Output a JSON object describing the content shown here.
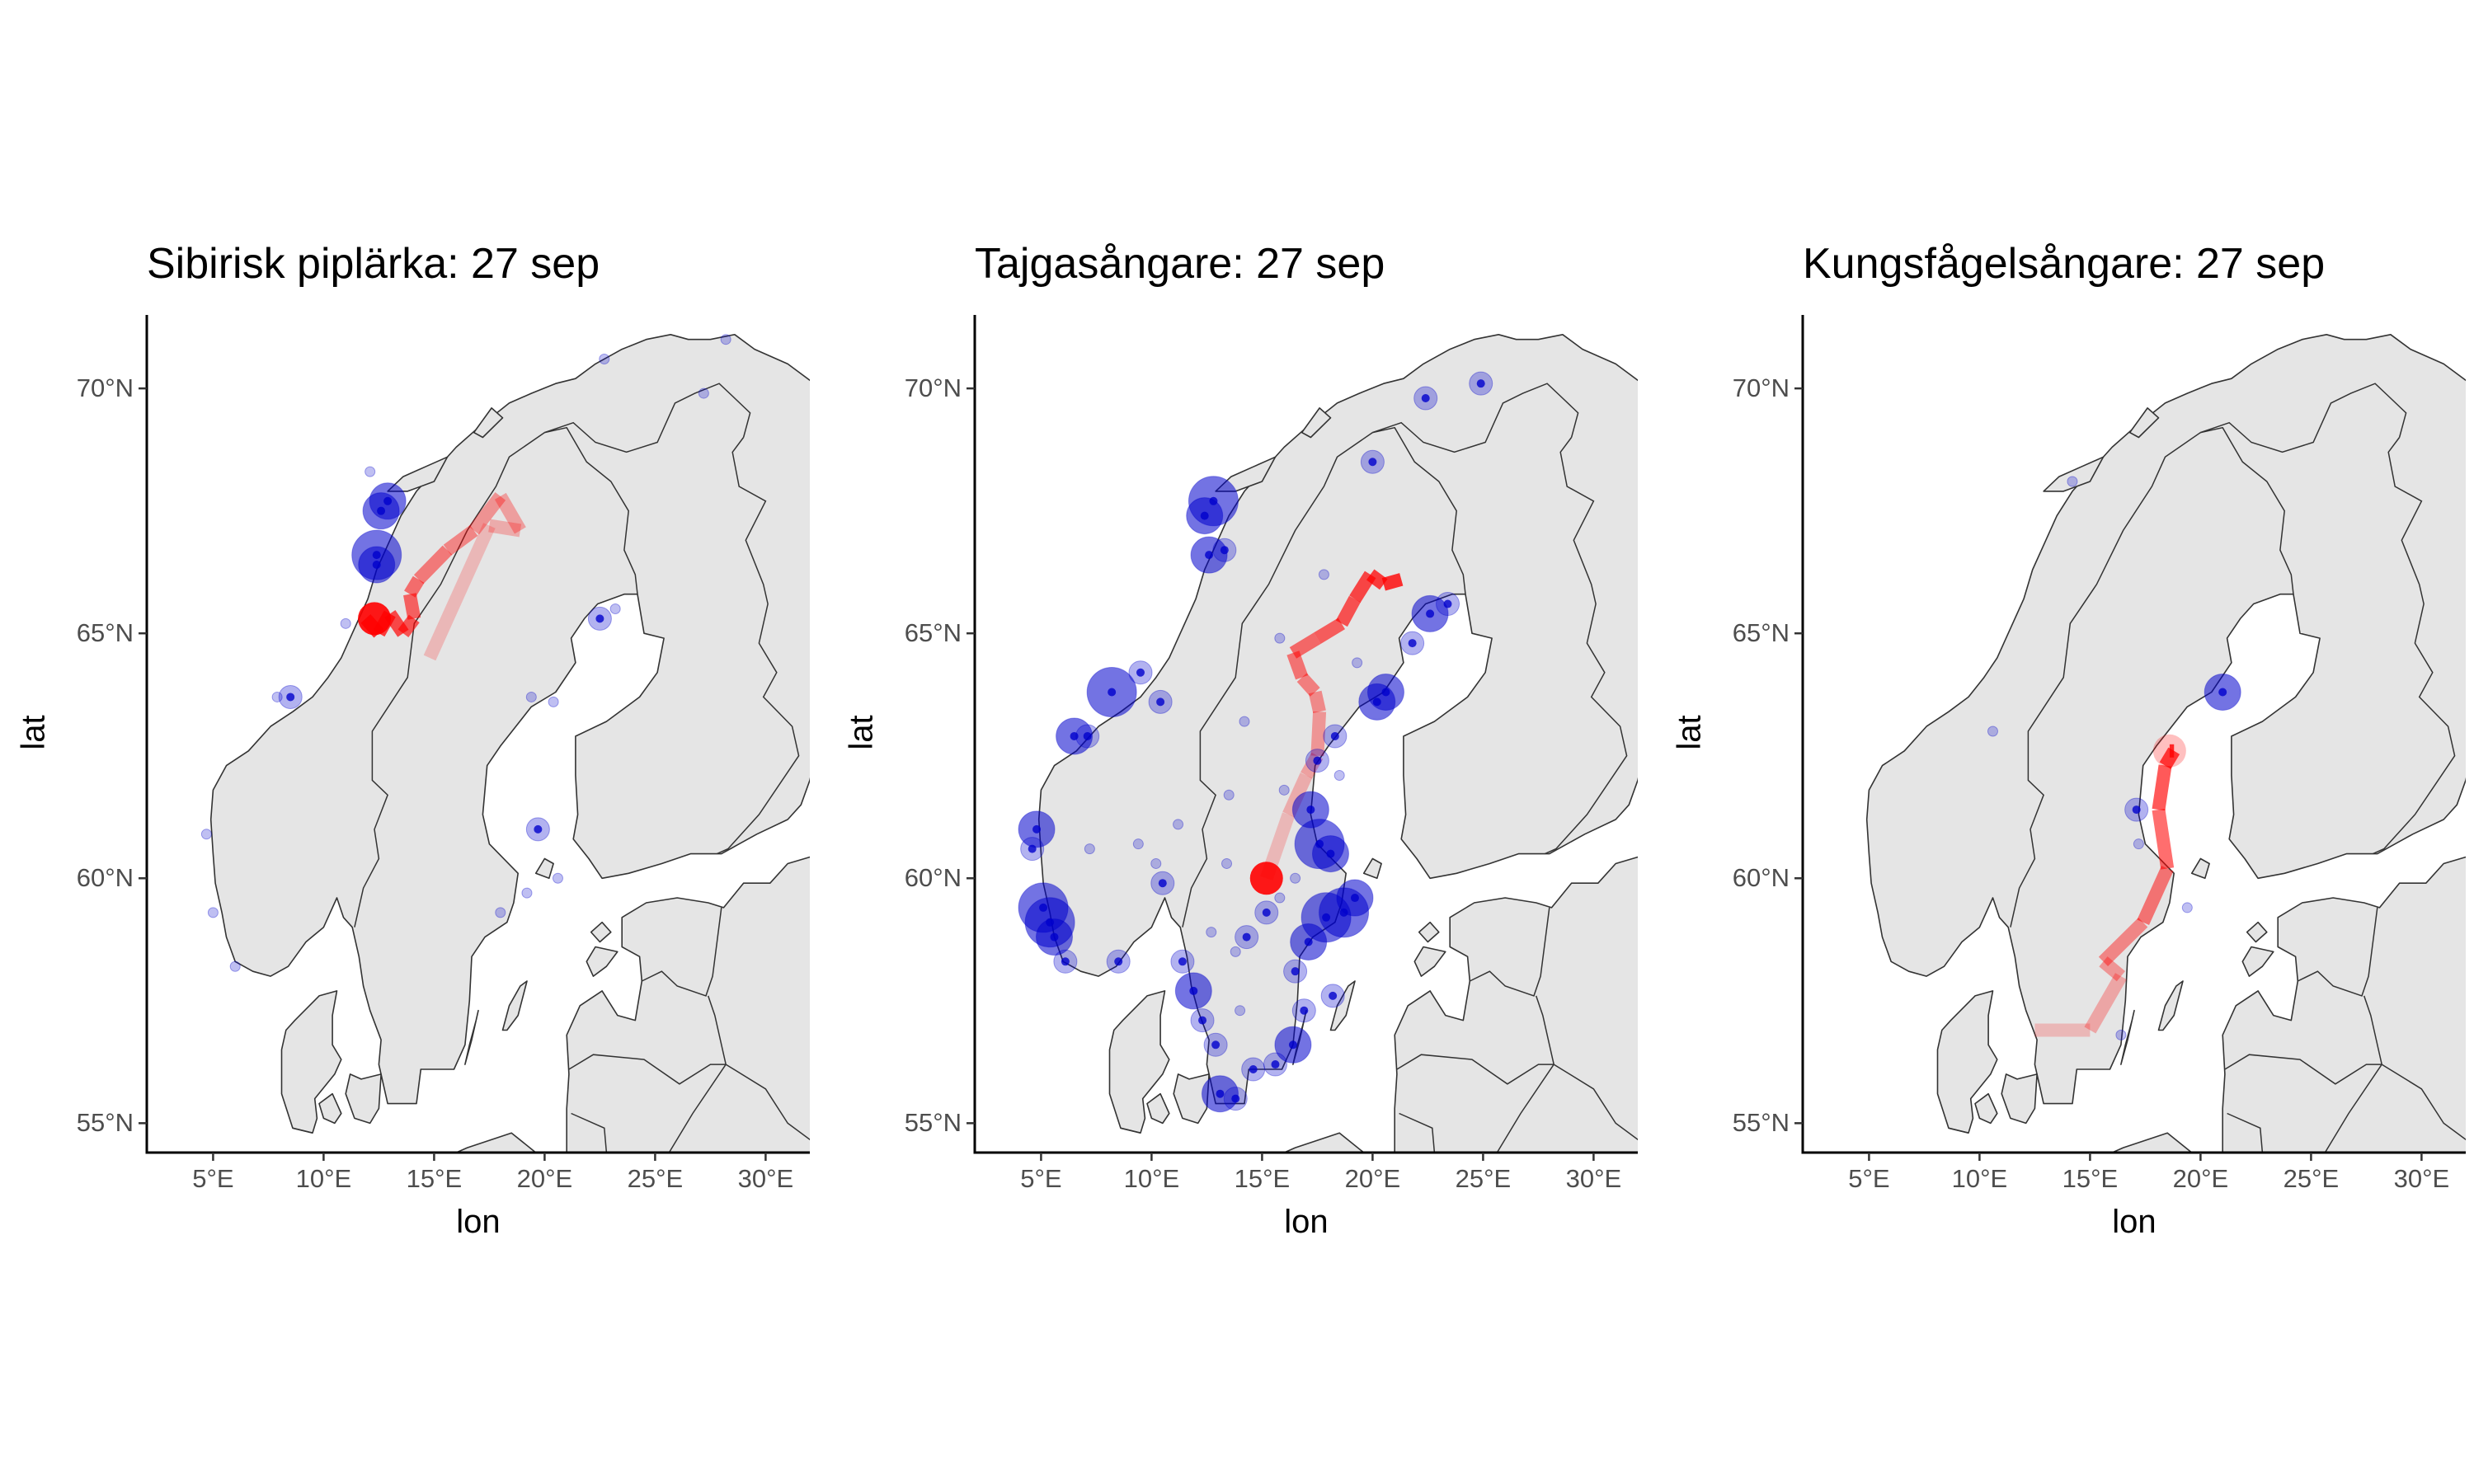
{
  "chart_data": [
    {
      "type": "map",
      "title": "Sibirisk piplärka: 27 sep",
      "xlabel": "lon",
      "ylabel": "lat",
      "xlim": [
        2,
        32
      ],
      "ylim": [
        54.4,
        71.5
      ],
      "x_ticks": [
        "5°E",
        "10°E",
        "15°E",
        "20°E",
        "25°E",
        "30°E"
      ],
      "y_ticks": [
        "55°N",
        "60°N",
        "65°N",
        "70°N"
      ],
      "track_color": "#ff0000",
      "point_color": "#0000cc",
      "track": [
        [
          14.8,
          64.5
        ],
        [
          17.5,
          67.2
        ],
        [
          18.9,
          67.1
        ],
        [
          18.0,
          67.8
        ],
        [
          16.8,
          67.1
        ],
        [
          15.6,
          66.7
        ],
        [
          14.3,
          66.1
        ],
        [
          13.9,
          65.8
        ],
        [
          14.1,
          65.3
        ],
        [
          13.6,
          65.0
        ],
        [
          13.0,
          65.4
        ],
        [
          12.5,
          65.0
        ],
        [
          11.9,
          65.3
        ]
      ],
      "current_position": [
        12.3,
        65.3
      ],
      "sightings": [
        [
          12.6,
          67.5,
          3
        ],
        [
          12.9,
          67.7,
          3
        ],
        [
          12.4,
          66.6,
          4
        ],
        [
          12.4,
          66.4,
          3
        ],
        [
          8.5,
          63.7,
          2
        ],
        [
          7.9,
          63.7,
          1
        ],
        [
          11.0,
          65.2,
          1
        ],
        [
          12.1,
          68.3,
          1
        ],
        [
          5.0,
          59.3,
          1
        ],
        [
          6.0,
          58.2,
          1
        ],
        [
          4.7,
          60.9,
          1
        ],
        [
          22.5,
          65.3,
          2
        ],
        [
          23.2,
          65.5,
          1
        ],
        [
          19.4,
          63.7,
          1
        ],
        [
          20.4,
          63.6,
          1
        ],
        [
          19.7,
          61.0,
          2
        ],
        [
          20.6,
          60.0,
          1
        ],
        [
          19.2,
          59.7,
          1
        ],
        [
          18.0,
          59.3,
          1
        ],
        [
          22.7,
          70.6,
          1
        ],
        [
          28.2,
          71.0,
          1
        ],
        [
          27.2,
          69.9,
          1
        ]
      ]
    },
    {
      "type": "map",
      "title": "Tajgasångare: 27 sep",
      "xlabel": "lon",
      "ylabel": "lat",
      "xlim": [
        2,
        32
      ],
      "ylim": [
        54.4,
        71.5
      ],
      "x_ticks": [
        "5°E",
        "10°E",
        "15°E",
        "20°E",
        "25°E",
        "30°E"
      ],
      "y_ticks": [
        "55°N",
        "60°N",
        "65°N",
        "70°N"
      ],
      "track_color": "#ff0000",
      "point_color": "#0000cc",
      "track": [
        [
          15.2,
          60.0
        ],
        [
          16.2,
          61.3
        ],
        [
          17.0,
          62.1
        ],
        [
          17.5,
          62.5
        ],
        [
          17.6,
          63.4
        ],
        [
          17.4,
          63.8
        ],
        [
          16.8,
          64.1
        ],
        [
          16.4,
          64.6
        ],
        [
          17.5,
          64.9
        ],
        [
          18.6,
          65.2
        ],
        [
          19.2,
          65.7
        ],
        [
          19.9,
          66.2
        ],
        [
          20.5,
          66.0
        ],
        [
          21.3,
          66.1
        ]
      ],
      "current_position": [
        15.2,
        60.0
      ],
      "sightings": [
        [
          12.8,
          67.7,
          4
        ],
        [
          12.4,
          67.4,
          3
        ],
        [
          12.6,
          66.6,
          3
        ],
        [
          13.3,
          66.7,
          2
        ],
        [
          8.2,
          63.8,
          4
        ],
        [
          9.5,
          64.2,
          2
        ],
        [
          10.4,
          63.6,
          2
        ],
        [
          6.5,
          62.9,
          3
        ],
        [
          7.1,
          62.9,
          2
        ],
        [
          4.8,
          61.0,
          3
        ],
        [
          4.6,
          60.6,
          2
        ],
        [
          5.1,
          59.4,
          4
        ],
        [
          5.4,
          59.1,
          4
        ],
        [
          5.6,
          58.8,
          3
        ],
        [
          6.1,
          58.3,
          2
        ],
        [
          8.5,
          58.3,
          2
        ],
        [
          10.5,
          59.9,
          2
        ],
        [
          11.4,
          58.3,
          2
        ],
        [
          11.9,
          57.7,
          3
        ],
        [
          12.3,
          57.1,
          2
        ],
        [
          12.9,
          56.6,
          2
        ],
        [
          13.1,
          55.6,
          3
        ],
        [
          13.8,
          55.5,
          2
        ],
        [
          14.6,
          56.1,
          2
        ],
        [
          15.6,
          56.2,
          2
        ],
        [
          16.4,
          56.6,
          3
        ],
        [
          16.9,
          57.3,
          2
        ],
        [
          18.2,
          57.6,
          2
        ],
        [
          17.1,
          58.7,
          3
        ],
        [
          17.9,
          59.2,
          4
        ],
        [
          18.7,
          59.3,
          4
        ],
        [
          19.2,
          59.6,
          3
        ],
        [
          17.6,
          60.7,
          4
        ],
        [
          18.1,
          60.5,
          3
        ],
        [
          17.2,
          61.4,
          3
        ],
        [
          17.5,
          62.4,
          2
        ],
        [
          18.3,
          62.9,
          2
        ],
        [
          20.2,
          63.6,
          3
        ],
        [
          20.6,
          63.8,
          3
        ],
        [
          21.8,
          64.8,
          2
        ],
        [
          22.6,
          65.4,
          3
        ],
        [
          23.4,
          65.6,
          2
        ],
        [
          20.0,
          68.5,
          2
        ],
        [
          22.4,
          69.8,
          2
        ],
        [
          24.9,
          70.1,
          2
        ],
        [
          16.5,
          60.0,
          1
        ],
        [
          15.2,
          59.3,
          2
        ],
        [
          14.3,
          58.8,
          2
        ],
        [
          16.5,
          58.1,
          2
        ],
        [
          13.8,
          58.5,
          1
        ],
        [
          15.8,
          59.6,
          1
        ],
        [
          13.4,
          60.3,
          1
        ],
        [
          14.0,
          57.3,
          1
        ],
        [
          12.7,
          58.9,
          1
        ],
        [
          18.5,
          62.1,
          1
        ],
        [
          19.3,
          64.4,
          1
        ],
        [
          17.8,
          66.2,
          1
        ],
        [
          15.8,
          64.9,
          1
        ],
        [
          14.2,
          63.2,
          1
        ],
        [
          11.2,
          61.1,
          1
        ],
        [
          9.4,
          60.7,
          1
        ],
        [
          7.2,
          60.6,
          1
        ],
        [
          10.2,
          60.3,
          1
        ],
        [
          13.5,
          61.7,
          1
        ],
        [
          16.0,
          61.8,
          1
        ]
      ]
    },
    {
      "type": "map",
      "title": "Kungsfågelsångare: 27 sep",
      "xlabel": "lon",
      "ylabel": "lat",
      "xlim": [
        2,
        32
      ],
      "ylim": [
        54.4,
        71.5
      ],
      "x_ticks": [
        "5°E",
        "10°E",
        "15°E",
        "20°E",
        "25°E",
        "30°E"
      ],
      "y_ticks": [
        "55°N",
        "60°N",
        "65°N",
        "70°N"
      ],
      "track_color": "#ff0000",
      "point_color": "#0000cc",
      "track": [
        [
          12.5,
          56.9
        ],
        [
          15.0,
          56.9
        ],
        [
          16.4,
          58.0
        ],
        [
          15.6,
          58.3
        ],
        [
          17.4,
          59.1
        ],
        [
          18.5,
          60.2
        ],
        [
          18.1,
          61.4
        ],
        [
          18.4,
          62.3
        ],
        [
          18.8,
          62.6
        ],
        [
          18.6,
          62.6
        ]
      ],
      "current_position": [
        18.6,
        62.6
      ],
      "sightings": [
        [
          21.0,
          63.8,
          3
        ],
        [
          17.1,
          61.4,
          2
        ],
        [
          19.4,
          59.4,
          1
        ],
        [
          17.2,
          60.7,
          1
        ],
        [
          16.4,
          56.8,
          1
        ],
        [
          14.2,
          68.1,
          1
        ],
        [
          10.6,
          63.0,
          1
        ]
      ]
    }
  ]
}
